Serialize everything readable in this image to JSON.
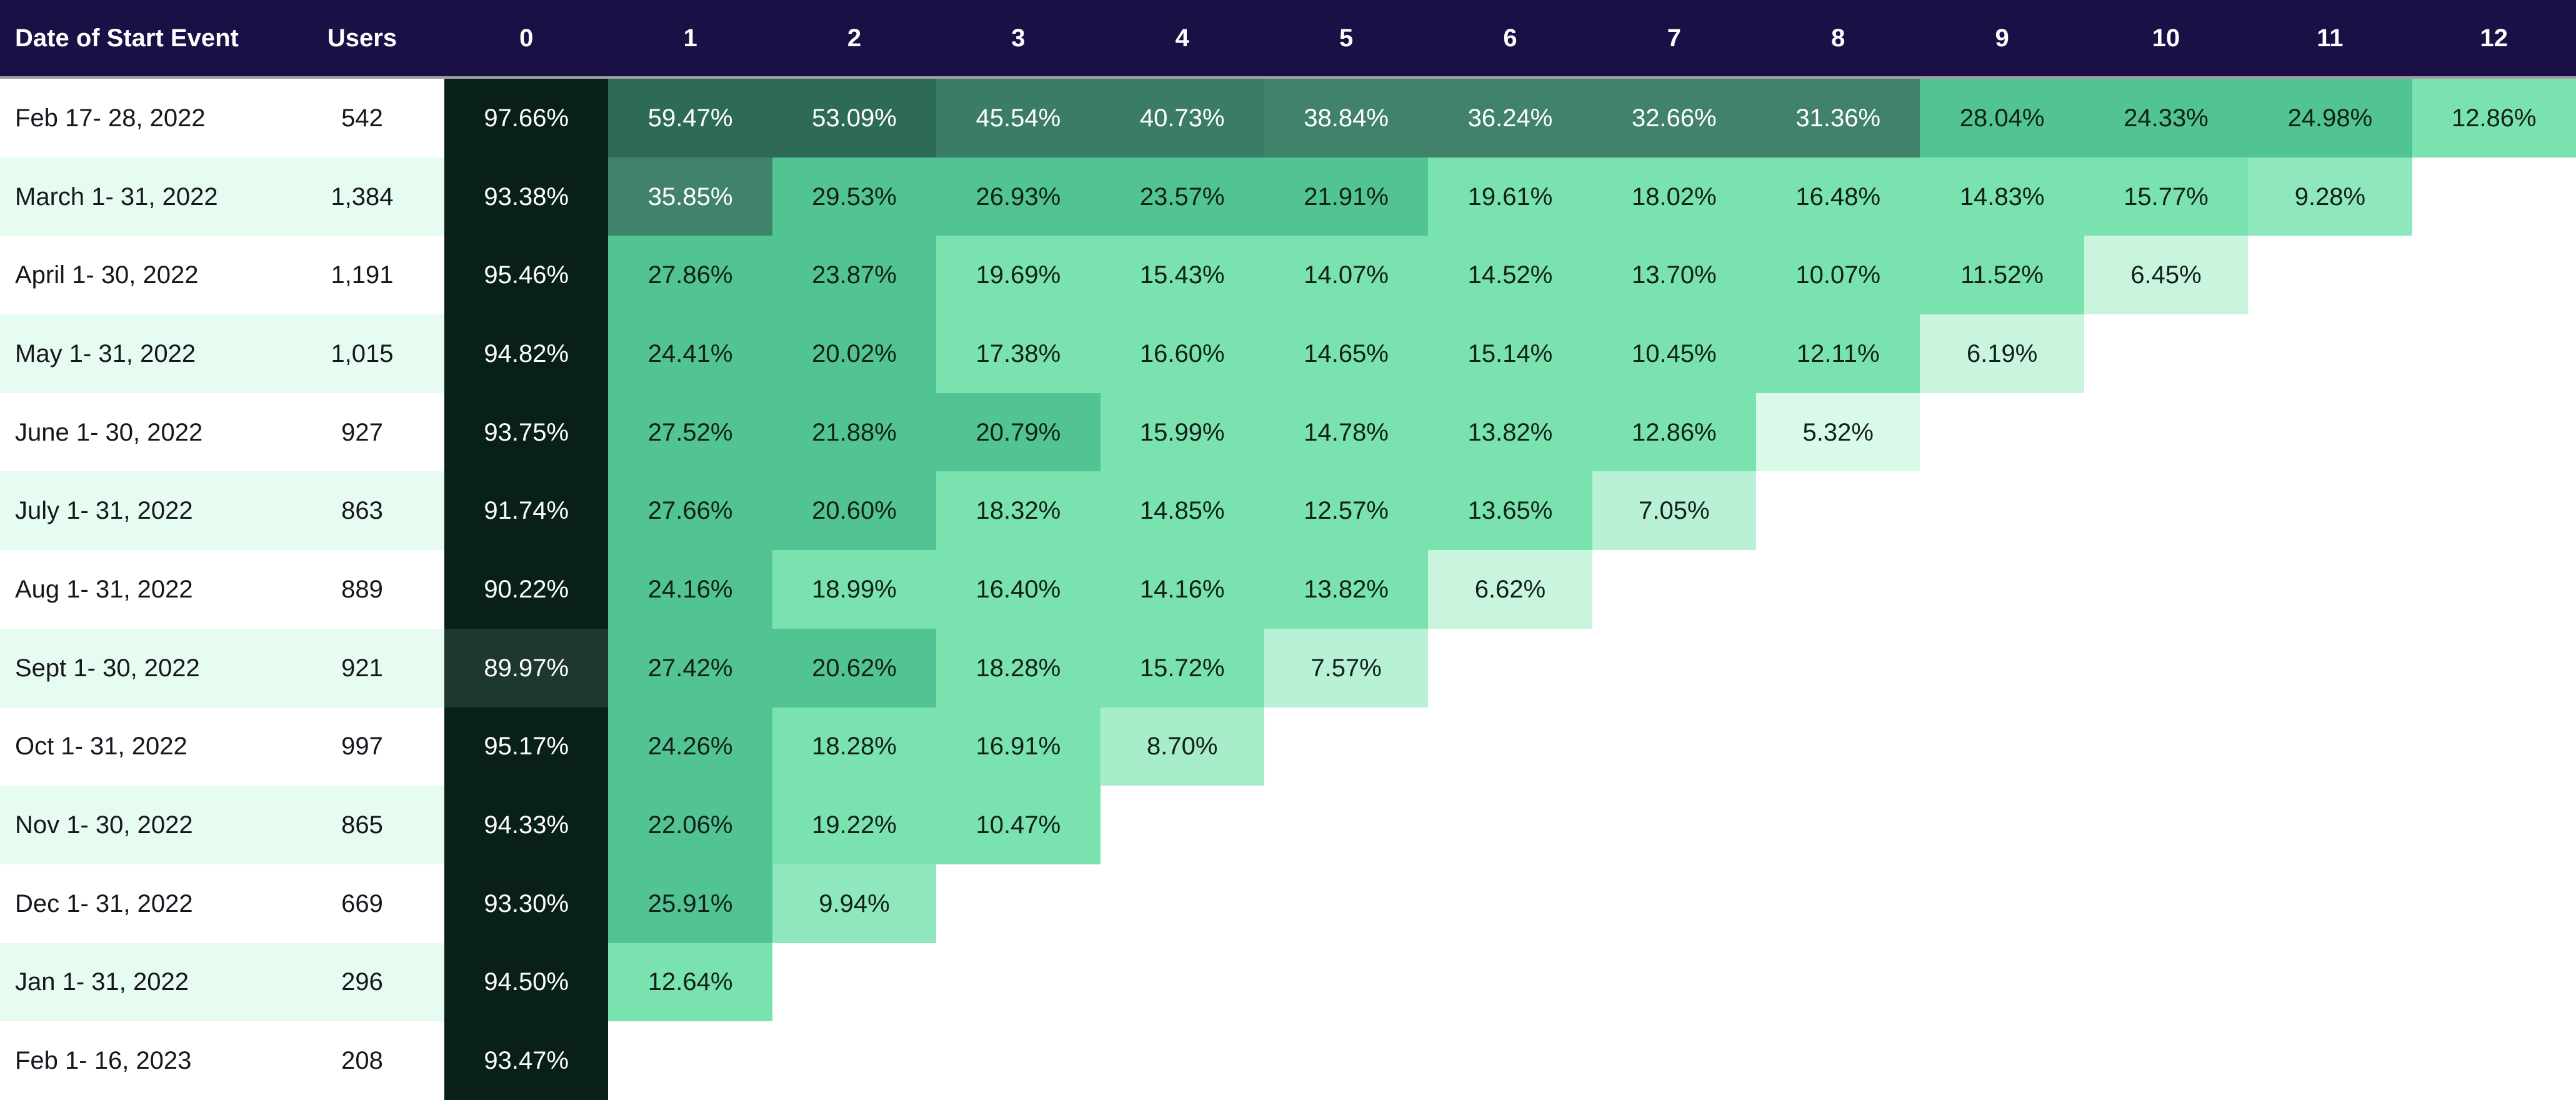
{
  "chart_data": {
    "type": "heatmap",
    "description": "Cohort retention table: rows are cohorts by date of start event, columns are periods 0-12, cell values are retention percentages",
    "header": {
      "date": "Date of Start Event",
      "users": "Users",
      "periods": [
        "0",
        "1",
        "2",
        "3",
        "4",
        "5",
        "6",
        "7",
        "8",
        "9",
        "10",
        "11",
        "12"
      ]
    },
    "cohorts": [
      {
        "date": "Feb 17- 28, 2022",
        "users": "542",
        "retention": [
          "97.66%",
          "59.47%",
          "53.09%",
          "45.54%",
          "40.73%",
          "38.84%",
          "36.24%",
          "32.66%",
          "31.36%",
          "28.04%",
          "24.33%",
          "24.98%",
          "12.86%"
        ]
      },
      {
        "date": "March 1- 31, 2022",
        "users": "1,384",
        "retention": [
          "93.38%",
          "35.85%",
          "29.53%",
          "26.93%",
          "23.57%",
          "21.91%",
          "19.61%",
          "18.02%",
          "16.48%",
          "14.83%",
          "15.77%",
          "9.28%"
        ]
      },
      {
        "date": "April 1- 30, 2022",
        "users": "1,191",
        "retention": [
          "95.46%",
          "27.86%",
          "23.87%",
          "19.69%",
          "15.43%",
          "14.07%",
          "14.52%",
          "13.70%",
          "10.07%",
          "11.52%",
          "6.45%"
        ]
      },
      {
        "date": "May 1- 31, 2022",
        "users": "1,015",
        "retention": [
          "94.82%",
          "24.41%",
          "20.02%",
          "17.38%",
          "16.60%",
          "14.65%",
          "15.14%",
          "10.45%",
          "12.11%",
          "6.19%"
        ]
      },
      {
        "date": "June 1- 30, 2022",
        "users": "927",
        "retention": [
          "93.75%",
          "27.52%",
          "21.88%",
          "20.79%",
          "15.99%",
          "14.78%",
          "13.82%",
          "12.86%",
          "5.32%"
        ]
      },
      {
        "date": "July 1- 31, 2022",
        "users": "863",
        "retention": [
          "91.74%",
          "27.66%",
          "20.60%",
          "18.32%",
          "14.85%",
          "12.57%",
          "13.65%",
          "7.05%"
        ]
      },
      {
        "date": "Aug 1- 31, 2022",
        "users": "889",
        "retention": [
          "90.22%",
          "24.16%",
          "18.99%",
          "16.40%",
          "14.16%",
          "13.82%",
          "6.62%"
        ]
      },
      {
        "date": "Sept 1- 30, 2022",
        "users": "921",
        "retention": [
          "89.97%",
          "27.42%",
          "20.62%",
          "18.28%",
          "15.72%",
          "7.57%"
        ]
      },
      {
        "date": "Oct 1- 31, 2022",
        "users": "997",
        "retention": [
          "95.17%",
          "24.26%",
          "18.28%",
          "16.91%",
          "8.70%"
        ]
      },
      {
        "date": "Nov 1- 30, 2022",
        "users": "865",
        "retention": [
          "94.33%",
          "22.06%",
          "19.22%",
          "10.47%"
        ]
      },
      {
        "date": "Dec 1- 31, 2022",
        "users": "669",
        "retention": [
          "93.30%",
          "25.91%",
          "9.94%"
        ]
      },
      {
        "date": "Jan 1- 31, 2022",
        "users": "296",
        "retention": [
          "94.50%",
          "12.64%"
        ]
      },
      {
        "date": "Feb 1- 16, 2023",
        "users": "208",
        "retention": [
          "93.47%"
        ]
      }
    ]
  },
  "colors": {
    "header_bg": "#1a1046",
    "header_text": "#ffffff",
    "header_divider": "#9fa1a9",
    "row_stripe_white": "#ffffff",
    "row_stripe_mint": "#e7fcf0",
    "label_text": "#16161e",
    "cell_text_dark": "#11201a",
    "cell_text_light": "#ffffff",
    "empty_cell": "#ffffff",
    "scale": [
      {
        "min": 90,
        "bg": "#082019",
        "text": "light"
      },
      {
        "min": 85,
        "bg": "#1e372f",
        "text": "light"
      },
      {
        "min": 50,
        "bg": "#2e6b57",
        "text": "light"
      },
      {
        "min": 40,
        "bg": "#3b7c66",
        "text": "light"
      },
      {
        "min": 30,
        "bg": "#40836a",
        "text": "light"
      },
      {
        "min": 20,
        "bg": "#52c493",
        "text": "dark"
      },
      {
        "min": 10,
        "bg": "#79e2ae",
        "text": "dark"
      },
      {
        "min": 9,
        "bg": "#8ee7bd",
        "text": "dark"
      },
      {
        "min": 8,
        "bg": "#a7edca",
        "text": "dark"
      },
      {
        "min": 7,
        "bg": "#b9f1d6",
        "text": "dark"
      },
      {
        "min": 6,
        "bg": "#c9f5df",
        "text": "dark"
      },
      {
        "min": 5,
        "bg": "#d9f9e9",
        "text": "dark"
      },
      {
        "min": 0,
        "bg": "#e9fcf2",
        "text": "dark"
      }
    ]
  }
}
